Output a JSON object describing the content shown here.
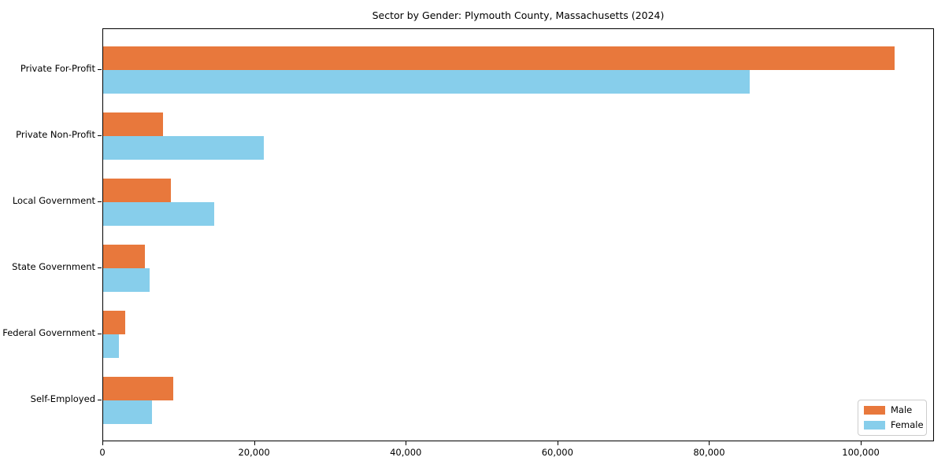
{
  "chart_data": {
    "type": "bar",
    "orientation": "horizontal",
    "title": "Sector by Gender: Plymouth County, Massachusetts (2024)",
    "categories": [
      "Private For-Profit",
      "Private Non-Profit",
      "Local Government",
      "State Government",
      "Federal Government",
      "Self-Employed"
    ],
    "series": [
      {
        "name": "Male",
        "color": "#e8783c",
        "values": [
          104400,
          7900,
          8900,
          5500,
          2900,
          9200
        ]
      },
      {
        "name": "Female",
        "color": "#87ceeb",
        "values": [
          85200,
          21200,
          14600,
          6100,
          2100,
          6400
        ]
      }
    ],
    "xlabel": "",
    "ylabel": "",
    "xlim": [
      0,
      109650
    ],
    "xticks": {
      "values": [
        0,
        20000,
        40000,
        60000,
        80000,
        100000
      ],
      "labels": [
        "0",
        "20,000",
        "40,000",
        "60,000",
        "80,000",
        "100,000"
      ]
    },
    "legend": {
      "position": "lower right",
      "entries": [
        "Male",
        "Female"
      ]
    },
    "grid": false,
    "plot_border_color": "#000000",
    "background_color": "#ffffff"
  }
}
